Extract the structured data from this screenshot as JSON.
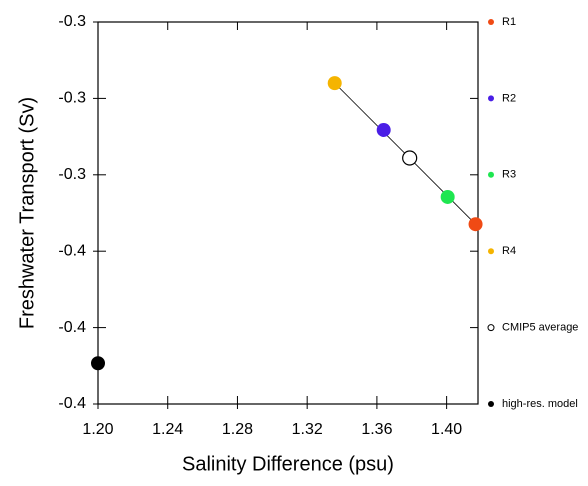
{
  "chart_data": {
    "type": "scatter",
    "x_label": "Salinity Difference (psu)",
    "y_label": "Freshwater Transport (Sv)",
    "xlim": [
      1.2,
      1.418
    ],
    "xticks": [
      {
        "value": 1.2,
        "label": "1.20"
      },
      {
        "value": 1.24,
        "label": "1.24"
      },
      {
        "value": 1.28,
        "label": "1.28"
      },
      {
        "value": 1.32,
        "label": "1.32"
      },
      {
        "value": 1.36,
        "label": "1.36"
      },
      {
        "value": 1.4,
        "label": "1.40"
      }
    ],
    "ylim": [
      -0.41,
      -0.26
    ],
    "yticks": [
      {
        "value": -0.26,
        "label": "-0.3"
      },
      {
        "value": -0.29,
        "label": "-0.3"
      },
      {
        "value": -0.32,
        "label": "-0.3"
      },
      {
        "value": -0.35,
        "label": "-0.4"
      },
      {
        "value": -0.38,
        "label": "-0.4"
      },
      {
        "value": -0.41,
        "label": "-0.4"
      }
    ],
    "series": [
      {
        "name": "R1",
        "color": "#f04a14",
        "filled": true,
        "x": [
          1.4166
        ],
        "values": [
          -0.3394
        ]
      },
      {
        "name": "R2",
        "color": "#4a1ee6",
        "filled": true,
        "x": [
          1.3639
        ],
        "values": [
          -0.3024
        ]
      },
      {
        "name": "R3",
        "color": "#1ee650",
        "filled": true,
        "x": [
          1.4006
        ],
        "values": [
          -0.3287
        ]
      },
      {
        "name": "R4",
        "color": "#f5b400",
        "filled": true,
        "x": [
          1.3358
        ],
        "values": [
          -0.284
        ]
      },
      {
        "name": "CMIP5 average",
        "color": "#000000",
        "filled": false,
        "x": [
          1.3788
        ],
        "values": [
          -0.3134
        ]
      },
      {
        "name": "high-res. model",
        "color": "#000000",
        "filled": true,
        "x": [
          1.2
        ],
        "values": [
          -0.394
        ]
      }
    ]
  }
}
